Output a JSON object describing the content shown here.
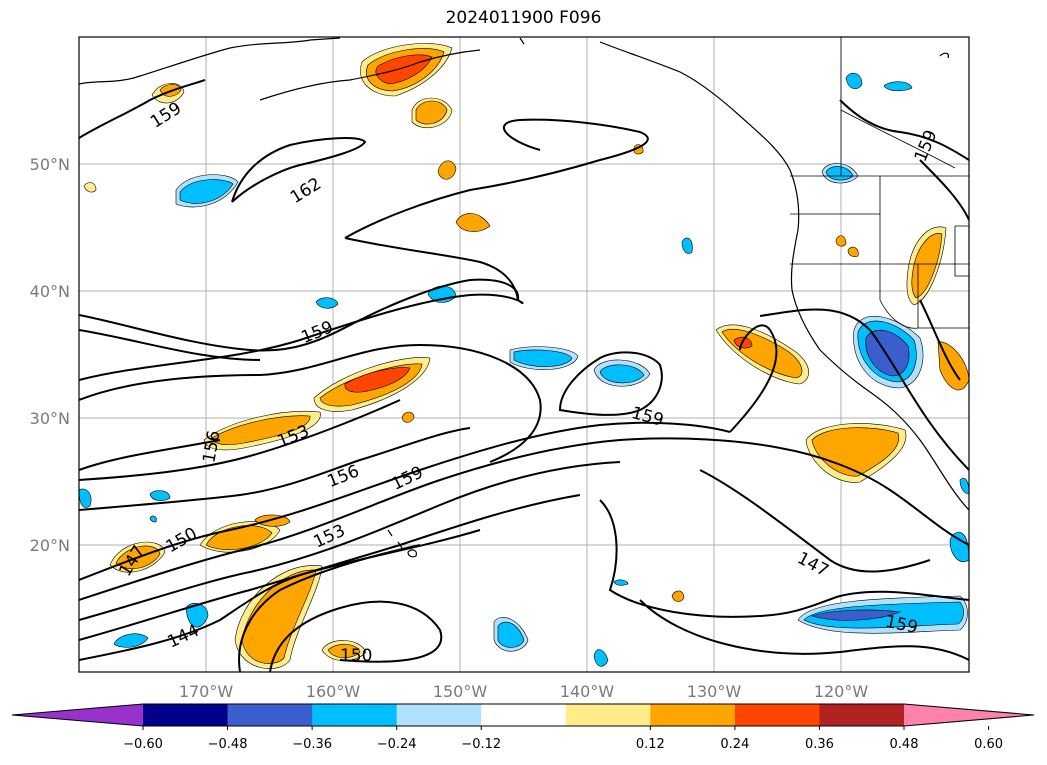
{
  "title": "2024011900 F096",
  "map": {
    "projection": "PlateCarree",
    "lon_range": [
      -180,
      -110
    ],
    "lat_range": [
      10,
      60
    ],
    "lat_ticks": [
      "20°N",
      "30°N",
      "40°N",
      "50°N"
    ],
    "lon_ticks": [
      "170°W",
      "160°W",
      "150°W",
      "140°W",
      "130°W",
      "120°W"
    ],
    "grid": true,
    "contour_labels": [
      "159",
      "162",
      "159",
      "156",
      "153",
      "156",
      "159",
      "159",
      "150",
      "147",
      "153",
      "144",
      "150",
      "147",
      "159"
    ],
    "colors": {
      "neg_060": "#9932cc",
      "neg_048": "#00008b",
      "neg_036": "#3a5fcd",
      "neg_024": "#00bfff",
      "neg_012": "#b0e2ff",
      "neutral": "#ffffff",
      "pos_012": "#ffec8b",
      "pos_024": "#ffa500",
      "pos_036": "#ff4500",
      "pos_048": "#b22222",
      "pos_060": "#ff82ab"
    }
  },
  "colorbar": {
    "ticks": [
      "−0.60",
      "−0.48",
      "−0.36",
      "−0.24",
      "−0.12",
      "0.12",
      "0.24",
      "0.36",
      "0.48",
      "0.60"
    ],
    "colors": [
      "#9932cc",
      "#00008b",
      "#3a5fcd",
      "#00bfff",
      "#b0e2ff",
      "#ffffff",
      "#ffec8b",
      "#ffa500",
      "#ff4500",
      "#b22222",
      "#ff82ab"
    ]
  }
}
